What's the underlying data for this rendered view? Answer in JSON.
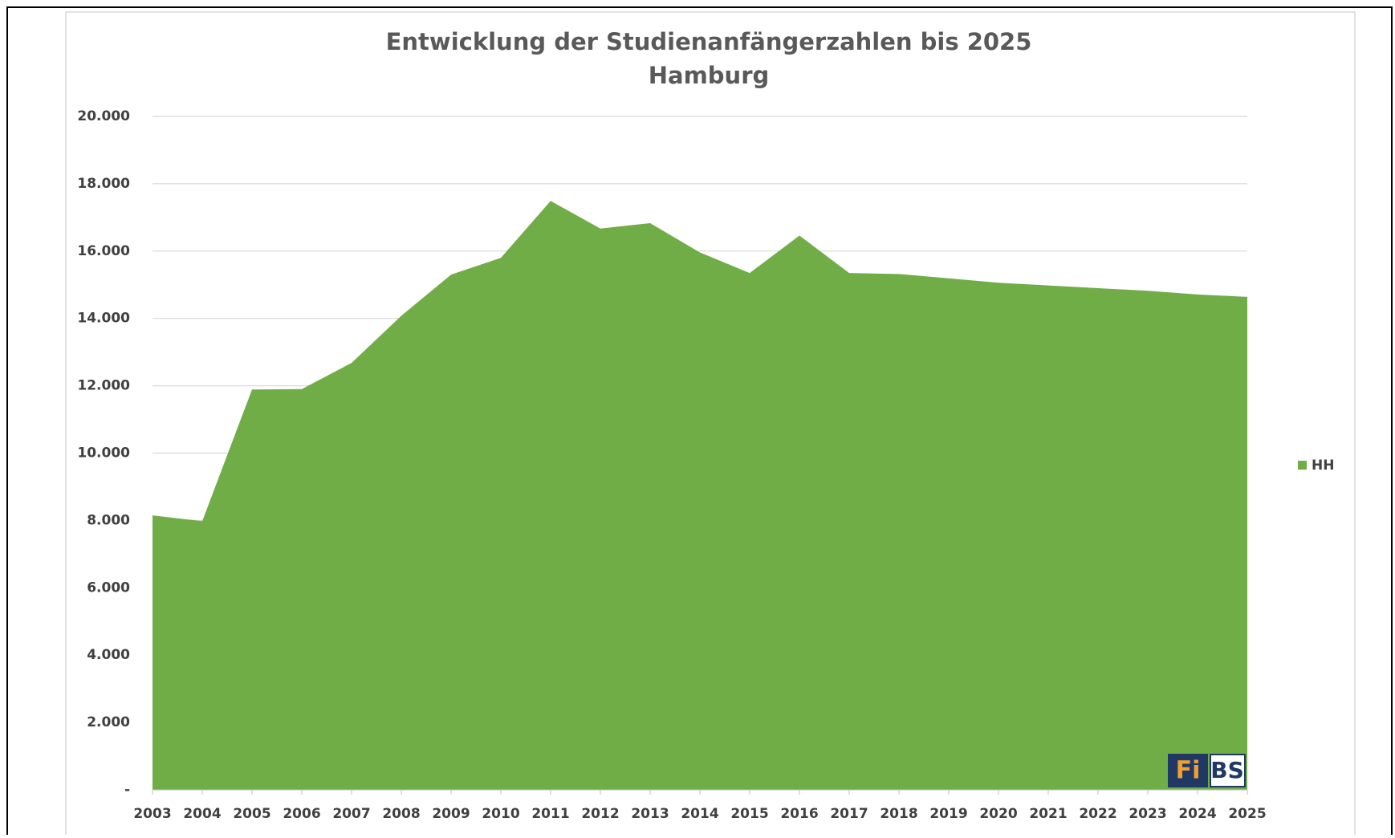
{
  "chart_data": {
    "type": "area",
    "title": "Entwicklung der Studienanfängerzahlen bis 2025",
    "subtitle": "Hamburg",
    "categories": [
      "2003",
      "2004",
      "2005",
      "2006",
      "2007",
      "2008",
      "2009",
      "2010",
      "2011",
      "2012",
      "2013",
      "2014",
      "2015",
      "2016",
      "2017",
      "2018",
      "2019",
      "2020",
      "2021",
      "2022",
      "2023",
      "2024",
      "2025"
    ],
    "series": [
      {
        "name": "HH",
        "color": "#70ad47",
        "values": [
          8150,
          7980,
          11890,
          11900,
          12680,
          14080,
          15300,
          15800,
          17490,
          16670,
          16830,
          15960,
          15350,
          16460,
          15350,
          15320,
          15190,
          15060,
          14980,
          14900,
          14820,
          14710,
          14640
        ]
      }
    ],
    "ylim": [
      0,
      20000
    ],
    "yticks": [
      {
        "value": 0,
        "label": "-"
      },
      {
        "value": 2000,
        "label": "2.000"
      },
      {
        "value": 4000,
        "label": "4.000"
      },
      {
        "value": 6000,
        "label": "6.000"
      },
      {
        "value": 8000,
        "label": "8.000"
      },
      {
        "value": 10000,
        "label": "10.000"
      },
      {
        "value": 12000,
        "label": "12.000"
      },
      {
        "value": 14000,
        "label": "14.000"
      },
      {
        "value": 16000,
        "label": "16.000"
      },
      {
        "value": 18000,
        "label": "18.000"
      },
      {
        "value": 20000,
        "label": "20.000"
      }
    ],
    "grid": true,
    "legend": "right",
    "logo": {
      "left": "Fi",
      "right": "BS"
    }
  }
}
